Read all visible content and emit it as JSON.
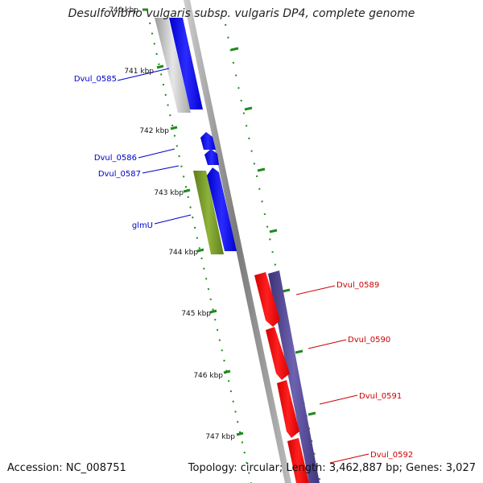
{
  "title": "Desulfovibrio vulgaris subsp. vulgaris DP4, complete genome",
  "footer": {
    "accession_label": "Accession:",
    "accession": "NC_008751",
    "topology_label": "Topology:",
    "topology": "circular",
    "length_label": "Length:",
    "length": "3,462,887 bp",
    "genes_label": "Genes:",
    "genes": "3,027"
  },
  "colors": {
    "forward_gene": "#0000ff",
    "forward_gene_gray": "#c0c0c0",
    "glmU": "#6b8e23",
    "reverse_gene": "#ff0000",
    "reverse_track": "#4b3f8f",
    "backbone": "#888888",
    "tick": "#1f8a1f"
  },
  "ticks": [
    {
      "label": "740 kbp"
    },
    {
      "label": "741 kbp"
    },
    {
      "label": "742 kbp"
    },
    {
      "label": "743 kbp"
    },
    {
      "label": "744 kbp"
    },
    {
      "label": "745 kbp"
    },
    {
      "label": "746 kbp"
    },
    {
      "label": "747 kbp"
    }
  ],
  "genes": [
    {
      "name": "Dvul_0585",
      "strand": "forward"
    },
    {
      "name": "Dvul_0586",
      "strand": "forward"
    },
    {
      "name": "Dvul_0587",
      "strand": "forward"
    },
    {
      "name": "glmU",
      "strand": "forward"
    },
    {
      "name": "Dvul_0589",
      "strand": "reverse"
    },
    {
      "name": "Dvul_0590",
      "strand": "reverse"
    },
    {
      "name": "Dvul_0591",
      "strand": "reverse"
    },
    {
      "name": "Dvul_0592",
      "strand": "reverse"
    }
  ]
}
